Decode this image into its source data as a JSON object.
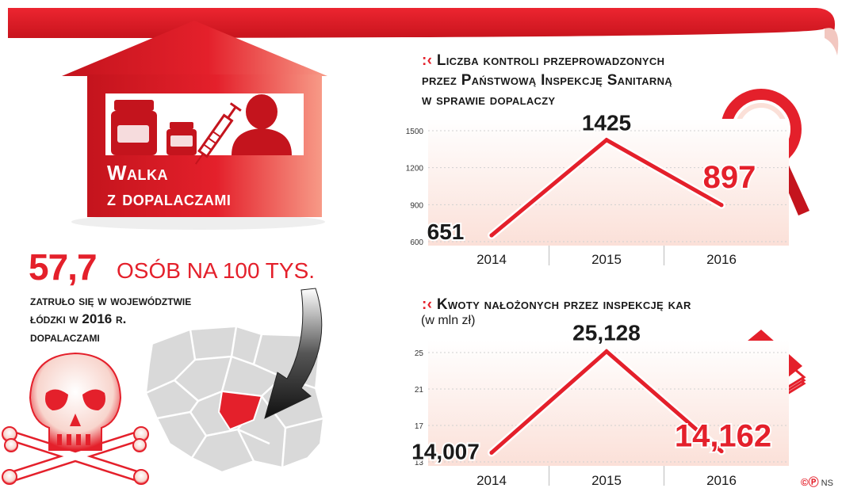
{
  "infographic": {
    "title": "Walka z dopalaczami",
    "title_lines": [
      "Walka",
      "z dopalaczami"
    ],
    "stat_value": "57,7",
    "stat_unit": "osób na 100 tys.",
    "stat_desc_lines": [
      "zatruło się w województwie",
      "łódzki w 2016 r.",
      "dopalaczami"
    ],
    "credit": "NS",
    "credit_marks": "©Ⓟ"
  },
  "colors": {
    "accent": "#e4202b",
    "dark_red": "#b5121b",
    "band": "#fbe3dc",
    "text": "#1a1a1a",
    "map_gray": "#d9d9d9"
  },
  "icons": [
    "skull-crossbones-icon",
    "magnifier-icon",
    "banknotes-icon",
    "jar-icon",
    "syringe-icon",
    "person-icon",
    "poland-map-icon",
    "arrow-icon"
  ],
  "chart_data": [
    {
      "type": "line",
      "title_lines": [
        "Liczba kontroli przeprowadzonych",
        "przez Państwową Inspekcję Sanitarną",
        "w sprawie dopalaczy"
      ],
      "x": [
        "2014",
        "2015",
        "2016"
      ],
      "values": [
        651,
        1425,
        897
      ],
      "value_labels": [
        "651",
        "1425",
        "897"
      ],
      "yticks": [
        600,
        900,
        1200,
        1500
      ],
      "ylim": [
        600,
        1500
      ],
      "grid": true
    },
    {
      "type": "line",
      "title": "Kwoty nałożonych przez inspekcję kar",
      "subtitle": "(w mln zł)",
      "x": [
        "2014",
        "2015",
        "2016"
      ],
      "values": [
        14.007,
        25.128,
        14.162
      ],
      "value_labels": [
        "14,007",
        "25,128",
        "14,162"
      ],
      "yticks": [
        13,
        17,
        21,
        25
      ],
      "ylim": [
        13,
        25
      ],
      "grid": true
    }
  ]
}
